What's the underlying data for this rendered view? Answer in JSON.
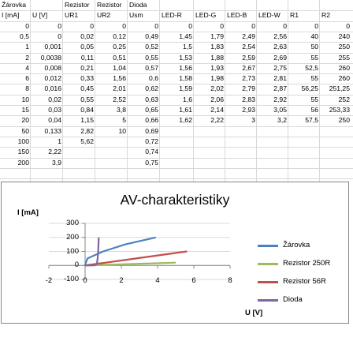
{
  "sheet": {
    "header1": [
      "Žárovka",
      "",
      "Rezistor",
      "Rezistor",
      "Dioda",
      "",
      "",
      "",
      "",
      "",
      "",
      ""
    ],
    "header2": [
      "I [mA]",
      "U [V]",
      "UR1",
      "UR2",
      "Usm",
      "LED-R",
      "LED-G",
      "LED-B",
      "LED-W",
      "R1",
      "R2",
      ""
    ],
    "rows": [
      [
        "0",
        "0",
        "0",
        "0",
        "0",
        "0",
        "0",
        "0",
        "0",
        "0",
        "0",
        ""
      ],
      [
        "0,5",
        "0",
        "0,02",
        "0,12",
        "0,49",
        "1,45",
        "1,79",
        "2,49",
        "2,56",
        "40",
        "240",
        ""
      ],
      [
        "1",
        "0,001",
        "0,05",
        "0,25",
        "0,52",
        "1,5",
        "1,83",
        "2,54",
        "2,63",
        "50",
        "250",
        ""
      ],
      [
        "2",
        "0,0038",
        "0,11",
        "0,51",
        "0,55",
        "1,53",
        "1,88",
        "2,59",
        "2,69",
        "55",
        "255",
        ""
      ],
      [
        "4",
        "0,008",
        "0,21",
        "1,04",
        "0,57",
        "1,56",
        "1,93",
        "2,67",
        "2,75",
        "52,5",
        "260",
        ""
      ],
      [
        "6",
        "0,012",
        "0,33",
        "1,56",
        "0,6",
        "1,58",
        "1,98",
        "2,73",
        "2,81",
        "55",
        "260",
        ""
      ],
      [
        "8",
        "0,016",
        "0,45",
        "2,01",
        "0,62",
        "1,59",
        "2,02",
        "2,79",
        "2,87",
        "56,25",
        "251,25",
        ""
      ],
      [
        "10",
        "0,02",
        "0,55",
        "2,52",
        "0,63",
        "1,6",
        "2,06",
        "2,83",
        "2,92",
        "55",
        "252",
        ""
      ],
      [
        "15",
        "0,03",
        "0,84",
        "3,8",
        "0,65",
        "1,61",
        "2,14",
        "2,93",
        "3,05",
        "56",
        "253,33",
        ""
      ],
      [
        "20",
        "0,04",
        "1,15",
        "5",
        "0,66",
        "1,62",
        "2,22",
        "3",
        "3,2",
        "57,5",
        "250",
        ""
      ],
      [
        "50",
        "0,133",
        "2,82",
        "10",
        "0,69",
        "",
        "",
        "",
        "",
        "",
        "",
        ""
      ],
      [
        "100",
        "1",
        "5,62",
        "",
        "0,72",
        "",
        "",
        "",
        "",
        "",
        "",
        ""
      ],
      [
        "150",
        "2,22",
        "",
        "",
        "0,74",
        "",
        "",
        "",
        "",
        "",
        "",
        ""
      ],
      [
        "200",
        "3,9",
        "",
        "",
        "0,75",
        "",
        "",
        "",
        "",
        "",
        "",
        ""
      ]
    ]
  },
  "chart_data": {
    "type": "scatter",
    "title": "AV-charakteristiky",
    "xlabel": "U [V]",
    "ylabel": "I [mA]",
    "xlim": [
      -2,
      8
    ],
    "ylim": [
      -100,
      300
    ],
    "x_ticks": [
      -2,
      0,
      2,
      4,
      6,
      8
    ],
    "y_ticks": [
      -100,
      0,
      100,
      200,
      300
    ],
    "legend_position": "right",
    "series": [
      {
        "name": "Žárovka",
        "color": "#4f81bd",
        "x": [
          0,
          0,
          0.001,
          0.0038,
          0.008,
          0.012,
          0.016,
          0.02,
          0.03,
          0.04,
          0.133,
          1,
          2.22,
          3.9
        ],
        "y": [
          0,
          0.5,
          1,
          2,
          4,
          6,
          8,
          10,
          15,
          20,
          50,
          100,
          150,
          200
        ]
      },
      {
        "name": "Rezistor 250R",
        "color": "#9bbb59",
        "x": [
          0,
          0.12,
          0.25,
          0.51,
          1.04,
          1.56,
          2.01,
          2.52,
          3.8,
          5
        ],
        "y": [
          0,
          0.5,
          1,
          2,
          4,
          6,
          8,
          10,
          15,
          20
        ]
      },
      {
        "name": "Rezistor 56R",
        "color": "#c0504d",
        "x": [
          0,
          0.02,
          0.05,
          0.11,
          0.21,
          0.33,
          0.45,
          0.55,
          0.84,
          1.15,
          2.82,
          5.62
        ],
        "y": [
          0,
          0.5,
          1,
          2,
          4,
          6,
          8,
          10,
          15,
          20,
          50,
          100
        ]
      },
      {
        "name": "Dioda",
        "color": "#8064a2",
        "x": [
          0,
          0.49,
          0.52,
          0.55,
          0.57,
          0.6,
          0.62,
          0.63,
          0.65,
          0.66,
          0.69,
          0.72,
          0.74,
          0.75
        ],
        "y": [
          0,
          0.5,
          1,
          2,
          4,
          6,
          8,
          10,
          15,
          20,
          50,
          100,
          150,
          200
        ]
      }
    ]
  }
}
